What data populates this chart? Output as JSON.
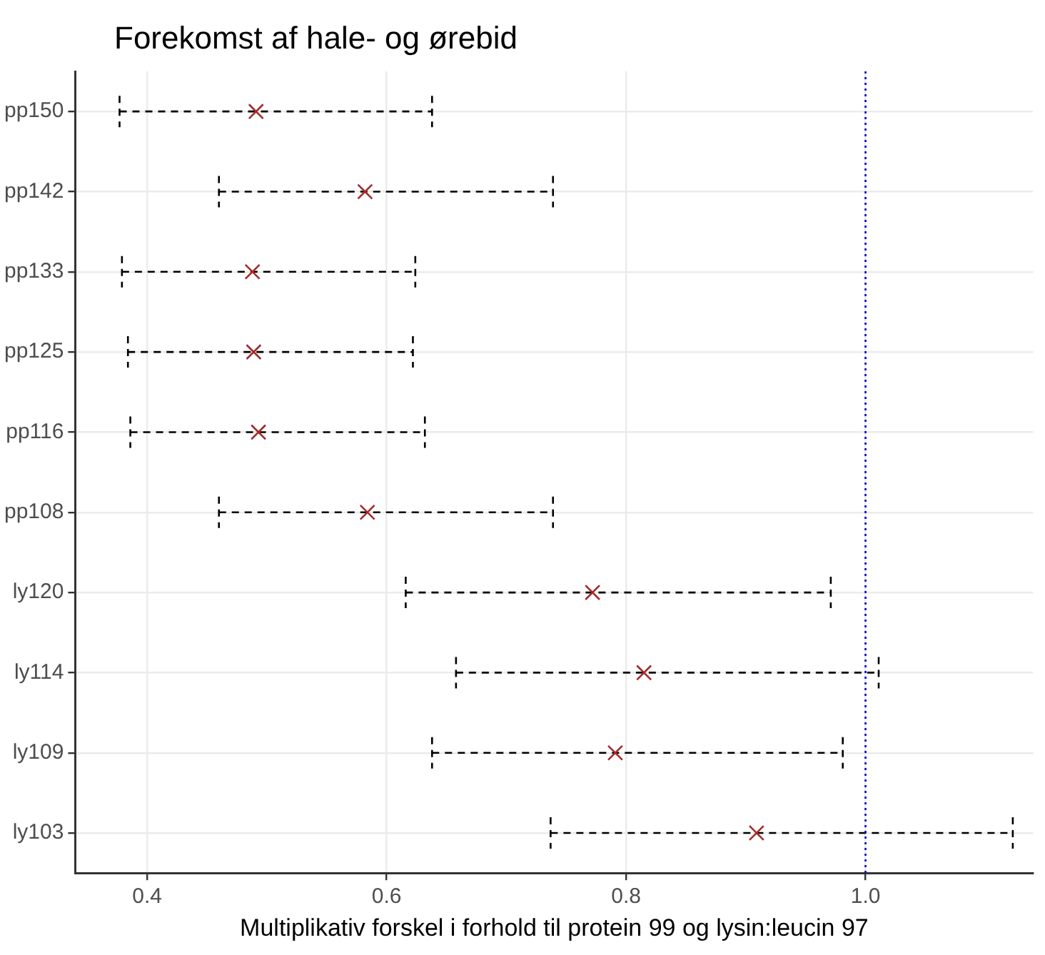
{
  "chart_data": {
    "type": "scatter",
    "title": "Forekomst af hale- og ørebid",
    "xlabel": "Multiplikativ forskel i forhold til protein 99 og lysin:leucin 97",
    "orientation": "horizontal",
    "categories": [
      "pp150",
      "pp142",
      "pp133",
      "pp125",
      "pp116",
      "pp108",
      "ly120",
      "ly114",
      "ly109",
      "ly103"
    ],
    "series": [
      {
        "color": "#a52a2a",
        "values": [
          0.491,
          0.582,
          0.488,
          0.489,
          0.493,
          0.584,
          0.772,
          0.815,
          0.791,
          0.909
        ],
        "errors": [
          [
            0.377,
            0.638
          ],
          [
            0.46,
            0.739
          ],
          [
            0.379,
            0.624
          ],
          [
            0.384,
            0.622
          ],
          [
            0.386,
            0.632
          ],
          [
            0.46,
            0.739
          ],
          [
            0.616,
            0.971
          ],
          [
            0.658,
            1.011
          ],
          [
            0.638,
            0.981
          ],
          [
            0.737,
            1.123
          ]
        ]
      }
    ],
    "xlim": [
      0.34,
      1.14
    ],
    "xticks": [
      {
        "value": 0.4,
        "label": "0.4"
      },
      {
        "value": 0.6,
        "label": "0.6"
      },
      {
        "value": 0.8,
        "label": "0.8"
      },
      {
        "value": 1.0,
        "label": "1.0"
      }
    ],
    "ref_lines": [
      {
        "axis": "x",
        "value": 1.0,
        "color": "#0000cd",
        "line_style": "dotted"
      }
    ],
    "grid": true,
    "legend": false,
    "marker": "cross"
  }
}
